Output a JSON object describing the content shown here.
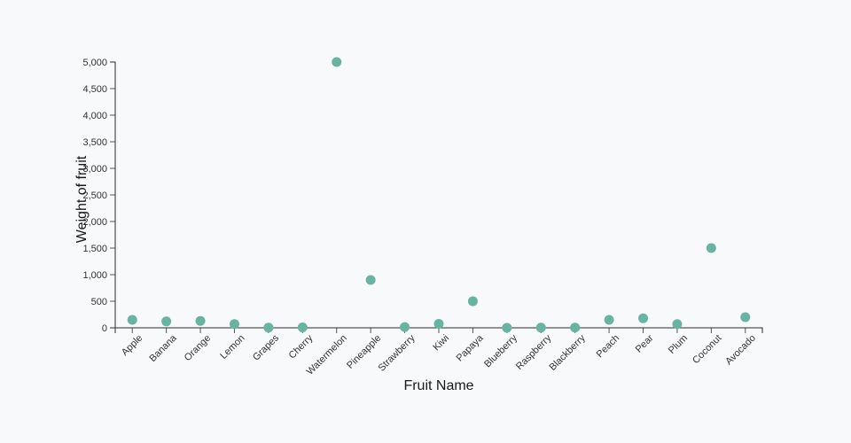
{
  "page": {
    "background": "#f8f9fa"
  },
  "chart_data": {
    "type": "scatter",
    "title": "",
    "xlabel": "Fruit Name",
    "ylabel": "Weight of fruit",
    "categories": [
      "Apple",
      "Banana",
      "Orange",
      "Lemon",
      "Grapes",
      "Cherry",
      "Watermelon",
      "Pineapple",
      "Strawberry",
      "Kiwi",
      "Papaya",
      "Blueberry",
      "Raspberry",
      "Blackberry",
      "Peach",
      "Pear",
      "Plum",
      "Coconut",
      "Avocado"
    ],
    "values": [
      150,
      120,
      130,
      70,
      5,
      8,
      5000,
      900,
      15,
      75,
      500,
      1,
      4,
      5,
      150,
      180,
      70,
      1500,
      200
    ],
    "ylim": [
      0,
      5000
    ],
    "y_tick_step": 500,
    "y_tick_labels": [
      "0",
      "500",
      "1,000",
      "1,500",
      "2,000",
      "2,500",
      "3,000",
      "3,500",
      "4,000",
      "4,500",
      "5,000"
    ],
    "grid": false,
    "legend": "none",
    "colors": {
      "point": "#69b3a2",
      "axis_line": "#2b2b2b",
      "tick_mark": "#555555",
      "tick_label": "#333333",
      "axis_title": "#1a1a1a"
    }
  }
}
